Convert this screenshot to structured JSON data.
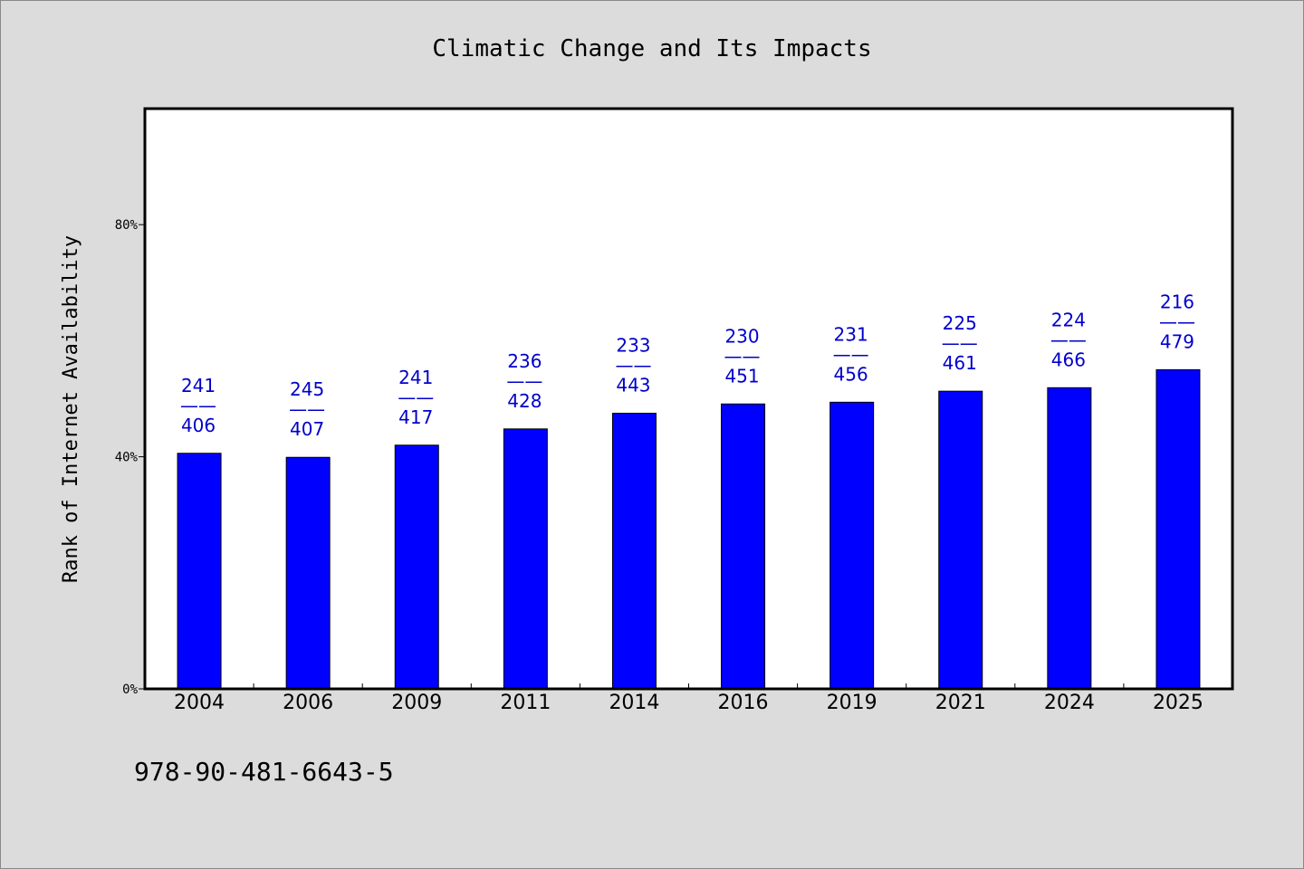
{
  "chart_data": {
    "type": "bar",
    "title": "Climatic Change and Its Impacts",
    "ylabel": "Rank of Internet Availability",
    "xlabel": "",
    "ylim": [
      0,
      100
    ],
    "yticks": [
      0,
      40,
      80
    ],
    "ytick_labels": [
      "0%",
      "40%",
      "80%"
    ],
    "categories": [
      "2004",
      "2006",
      "2009",
      "2011",
      "2014",
      "2016",
      "2019",
      "2021",
      "2024",
      "2025"
    ],
    "values": [
      40.6,
      39.9,
      42.0,
      44.8,
      47.5,
      49.1,
      49.4,
      51.3,
      51.9,
      55.0
    ],
    "data_labels": [
      {
        "top": "241",
        "sep": "——",
        "bottom": "406"
      },
      {
        "top": "245",
        "sep": "——",
        "bottom": "407"
      },
      {
        "top": "241",
        "sep": "——",
        "bottom": "417"
      },
      {
        "top": "236",
        "sep": "——",
        "bottom": "428"
      },
      {
        "top": "233",
        "sep": "——",
        "bottom": "443"
      },
      {
        "top": "230",
        "sep": "——",
        "bottom": "451"
      },
      {
        "top": "231",
        "sep": "——",
        "bottom": "456"
      },
      {
        "top": "225",
        "sep": "——",
        "bottom": "461"
      },
      {
        "top": "224",
        "sep": "——",
        "bottom": "466"
      },
      {
        "top": "216",
        "sep": "——",
        "bottom": "479"
      }
    ],
    "bar_color": "#0000ff",
    "label_color": "#0000cc",
    "grid": false,
    "legend": "none"
  },
  "footnote": "978-90-481-6643-5"
}
